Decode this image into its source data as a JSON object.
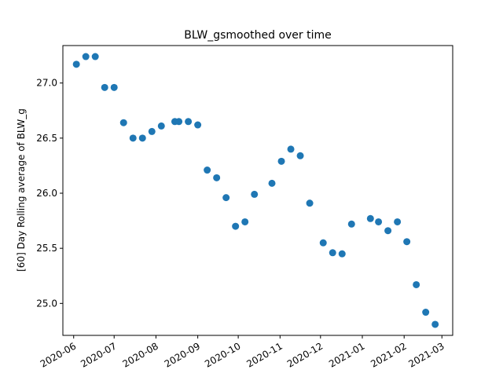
{
  "chart_data": {
    "type": "scatter",
    "title": "BLW_gsmoothed over time",
    "xlabel": "",
    "ylabel": "[60] Day Rolling average of BLW_g",
    "marker_color": "#1f77b4",
    "grid": false,
    "legend": "none",
    "xlim": [
      "2020-05-24",
      "2021-03-09"
    ],
    "ylim": [
      24.71,
      27.34
    ],
    "x_ticks": [
      "2020-06",
      "2020-07",
      "2020-08",
      "2020-09",
      "2020-10",
      "2020-11",
      "2020-12",
      "2021-01",
      "2021-02",
      "2021-03"
    ],
    "y_ticks": [
      "25.0",
      "25.5",
      "26.0",
      "26.5",
      "27.0"
    ],
    "points": [
      {
        "x": "2020-06-03",
        "y": 27.17
      },
      {
        "x": "2020-06-10",
        "y": 27.24
      },
      {
        "x": "2020-06-17",
        "y": 27.24
      },
      {
        "x": "2020-06-24",
        "y": 26.96
      },
      {
        "x": "2020-07-01",
        "y": 26.96
      },
      {
        "x": "2020-07-08",
        "y": 26.64
      },
      {
        "x": "2020-07-15",
        "y": 26.5
      },
      {
        "x": "2020-07-22",
        "y": 26.5
      },
      {
        "x": "2020-07-29",
        "y": 26.56
      },
      {
        "x": "2020-08-05",
        "y": 26.61
      },
      {
        "x": "2020-08-15",
        "y": 26.65
      },
      {
        "x": "2020-08-18",
        "y": 26.65
      },
      {
        "x": "2020-08-25",
        "y": 26.65
      },
      {
        "x": "2020-09-01",
        "y": 26.62
      },
      {
        "x": "2020-09-08",
        "y": 26.21
      },
      {
        "x": "2020-09-15",
        "y": 26.14
      },
      {
        "x": "2020-09-22",
        "y": 25.96
      },
      {
        "x": "2020-09-29",
        "y": 25.7
      },
      {
        "x": "2020-10-06",
        "y": 25.74
      },
      {
        "x": "2020-10-13",
        "y": 25.99
      },
      {
        "x": "2020-10-26",
        "y": 26.09
      },
      {
        "x": "2020-11-02",
        "y": 26.29
      },
      {
        "x": "2020-11-09",
        "y": 26.4
      },
      {
        "x": "2020-11-16",
        "y": 26.34
      },
      {
        "x": "2020-11-23",
        "y": 25.91
      },
      {
        "x": "2020-12-03",
        "y": 25.55
      },
      {
        "x": "2020-12-10",
        "y": 25.46
      },
      {
        "x": "2020-12-17",
        "y": 25.45
      },
      {
        "x": "2020-12-24",
        "y": 25.72
      },
      {
        "x": "2021-01-07",
        "y": 25.77
      },
      {
        "x": "2021-01-13",
        "y": 25.74
      },
      {
        "x": "2021-01-20",
        "y": 25.66
      },
      {
        "x": "2021-01-27",
        "y": 25.74
      },
      {
        "x": "2021-02-03",
        "y": 25.56
      },
      {
        "x": "2021-02-10",
        "y": 25.17
      },
      {
        "x": "2021-02-17",
        "y": 24.92
      },
      {
        "x": "2021-02-24",
        "y": 24.81
      }
    ]
  }
}
